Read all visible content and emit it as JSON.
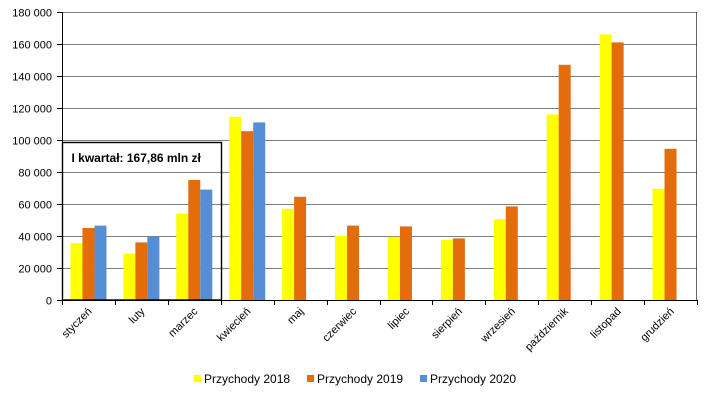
{
  "chart_data": {
    "type": "bar",
    "title": "",
    "xlabel": "",
    "ylabel": "",
    "ylim": [
      0,
      180000
    ],
    "yticks": [
      0,
      20000,
      40000,
      60000,
      80000,
      100000,
      120000,
      140000,
      160000,
      180000
    ],
    "ytick_labels": [
      "0",
      "20 000",
      "40 000",
      "60 000",
      "80 000",
      "100 000",
      "120 000",
      "140 000",
      "160 000",
      "180 000"
    ],
    "grid": true,
    "legend_position": "bottom",
    "categories": [
      "styczeń",
      "luty",
      "marzec",
      "kwiecień",
      "maj",
      "czerwiec",
      "lipiec",
      "sierpień",
      "wrzesień",
      "październik",
      "listopad",
      "grudzień"
    ],
    "series": [
      {
        "name": "Przychody 2018",
        "color": "#ffff00",
        "values": [
          35500,
          29000,
          54000,
          114500,
          57000,
          40000,
          39500,
          37500,
          50500,
          116000,
          166000,
          69500
        ]
      },
      {
        "name": "Przychody 2019",
        "color": "#e46c0a",
        "values": [
          45000,
          36000,
          75000,
          105500,
          64500,
          46500,
          46000,
          38500,
          58500,
          147000,
          161000,
          94500
        ]
      },
      {
        "name": "Przychody 2020",
        "color": "#558ed5",
        "values": [
          46500,
          39500,
          69000,
          111000,
          null,
          null,
          null,
          null,
          null,
          null,
          null,
          null
        ]
      }
    ],
    "annotation": {
      "text": "I kwartał: 167,86 mln zł",
      "spans_categories": [
        0,
        2
      ]
    }
  }
}
